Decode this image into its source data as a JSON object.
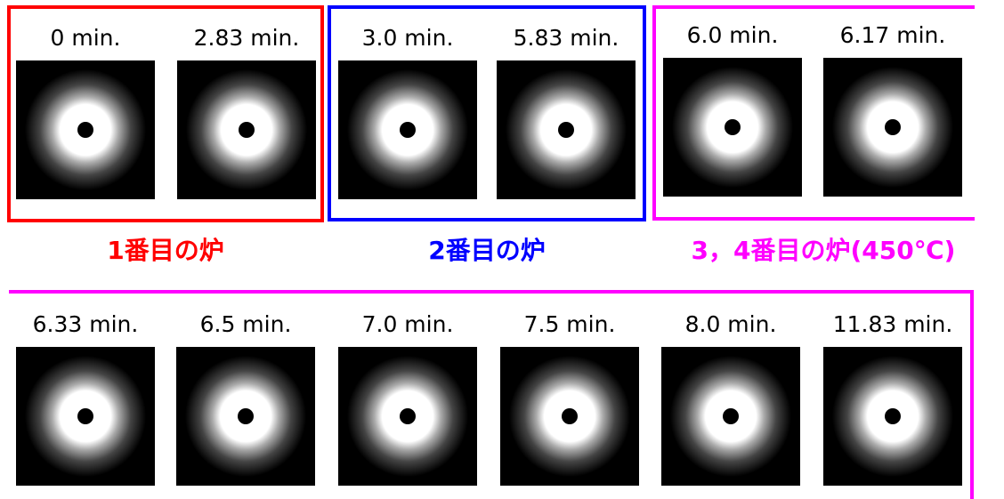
{
  "row1": {
    "groups": [
      {
        "label": "1番目の炉",
        "color": "#ff0000",
        "images": [
          "0 min.",
          "2.83 min."
        ]
      },
      {
        "label": "2番目の炉",
        "color": "#0000ff",
        "images": [
          "3.0 min.",
          "5.83 min."
        ]
      },
      {
        "label": "3，4番目の炉(450℃)",
        "color": "#ff00ff",
        "images": [
          "6.0 min.",
          "6.17 min."
        ]
      }
    ]
  },
  "row2": {
    "color": "#ff00ff",
    "images": [
      "6.33 min.",
      "6.5 min.",
      "7.0 min.",
      "7.5 min.",
      "8.0 min.",
      "11.83 min."
    ]
  }
}
